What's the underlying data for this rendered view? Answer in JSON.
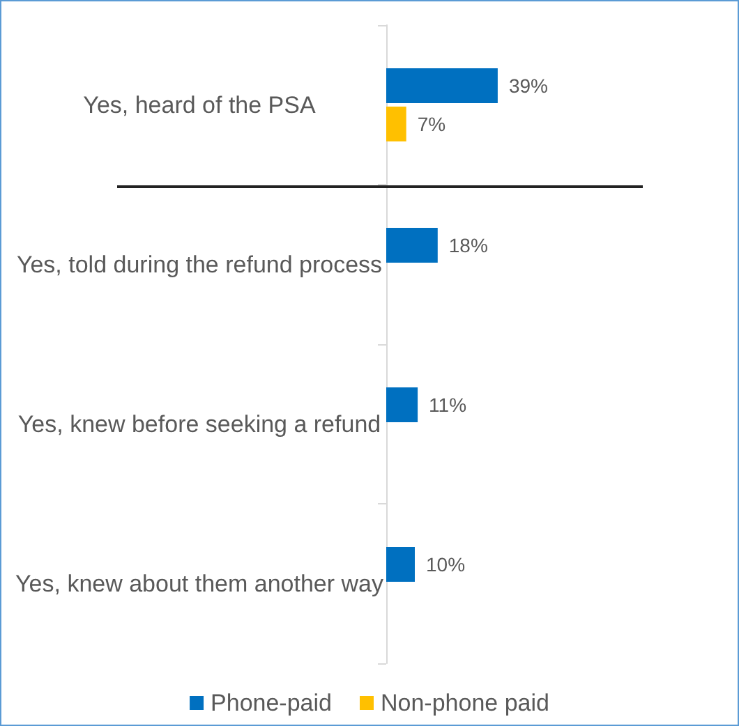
{
  "chart_data": {
    "type": "bar",
    "orientation": "horizontal",
    "categories": [
      "Yes, heard of the PSA",
      "Yes, told during the refund process",
      "Yes, knew before seeking a refund",
      "Yes, knew about them another way"
    ],
    "series": [
      {
        "name": "Phone-paid",
        "color": "#0070c0",
        "values": [
          39,
          18,
          11,
          10
        ],
        "value_labels": [
          "39%",
          "18%",
          "11%",
          "10%"
        ]
      },
      {
        "name": "Non-phone paid",
        "color": "#ffc000",
        "values": [
          7,
          null,
          null,
          null
        ],
        "value_labels": [
          "7%",
          null,
          null,
          null
        ]
      }
    ],
    "legend": "bottom"
  }
}
